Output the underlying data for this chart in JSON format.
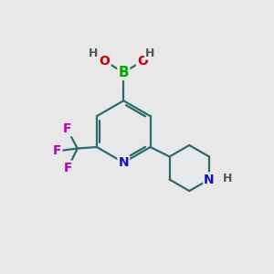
{
  "bg_color": "#e8e8e8",
  "bond_color": "#2d6b6b",
  "bond_width": 1.6,
  "atom_colors": {
    "B": "#00aa00",
    "N": "#1111cc",
    "O": "#cc0000",
    "F": "#bb00bb",
    "H": "#555555",
    "C": "#2d6b6b"
  },
  "font_size": 10,
  "fig_size": [
    3.0,
    3.0
  ],
  "dpi": 100
}
